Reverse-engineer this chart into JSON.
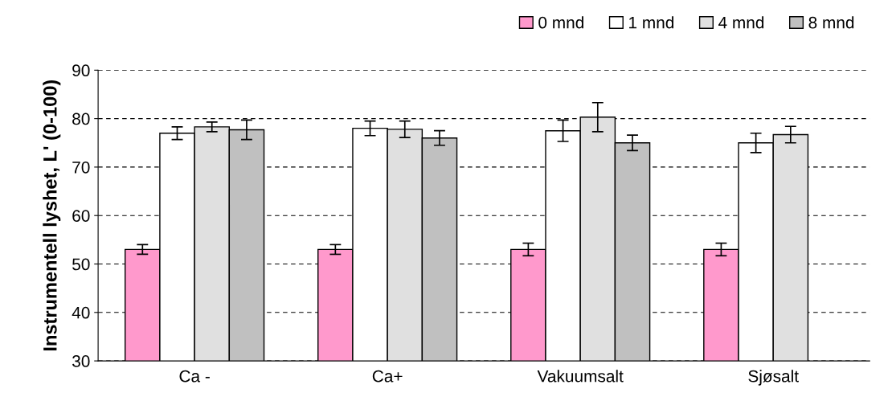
{
  "chart_data": {
    "type": "bar",
    "ylabel": "Instrumentell lyshet, L' (0-100)",
    "categories": [
      "Ca -",
      "Ca+",
      "Vakuumsalt",
      "Sjøsalt"
    ],
    "series": [
      {
        "name": "0 mnd",
        "color": "#ff99cc",
        "values": [
          53,
          53,
          53,
          53
        ],
        "errors": [
          1,
          1,
          1.3,
          1.3
        ]
      },
      {
        "name": "1 mnd",
        "color": "#ffffff",
        "values": [
          77,
          78,
          77.5,
          75
        ],
        "errors": [
          1.3,
          1.5,
          2.2,
          2
        ]
      },
      {
        "name": "4 mnd",
        "color": "#e0e0e0",
        "values": [
          78.3,
          77.8,
          80.3,
          76.7
        ],
        "errors": [
          1,
          1.7,
          3,
          1.7
        ]
      },
      {
        "name": "8 mnd",
        "color": "#c0c0c0",
        "values": [
          77.7,
          76,
          75,
          null
        ],
        "errors": [
          2,
          1.5,
          1.6,
          null
        ]
      }
    ],
    "ylim": [
      30,
      90
    ],
    "yticks": [
      30,
      40,
      50,
      60,
      70,
      80,
      90
    ],
    "grid": "y",
    "legend": "top right"
  }
}
